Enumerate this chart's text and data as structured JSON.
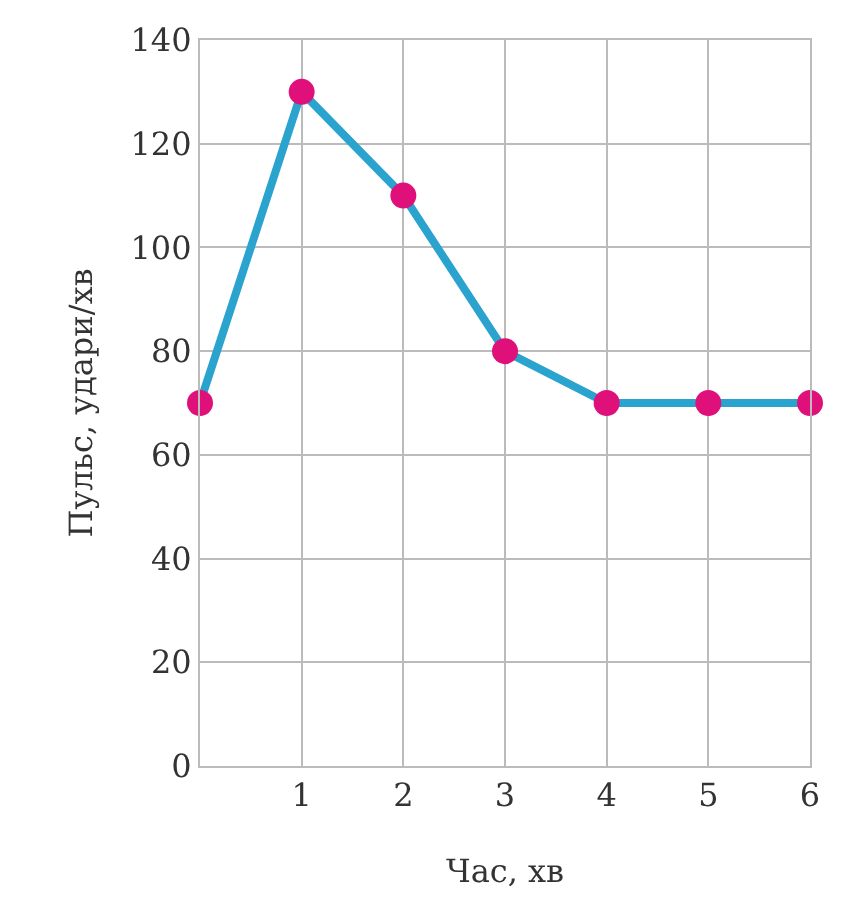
{
  "chart_data": {
    "type": "line",
    "xlabel": "Час, хв",
    "ylabel": "Пульс, удари/хв",
    "x": [
      0,
      1,
      2,
      3,
      4,
      5,
      6
    ],
    "series": [
      {
        "color": "#2aa3cf",
        "colors": [
          "#e0107a",
          "#e0107a",
          "#e0107a",
          "#e0107a",
          "#e0107a",
          "#e0107a",
          "#e0107a"
        ],
        "values": [
          70,
          130,
          110,
          80,
          70,
          70,
          70
        ]
      }
    ],
    "marker": "circle",
    "xlim": [
      0,
      6
    ],
    "xticks": [
      1,
      2,
      3,
      4,
      5,
      6
    ],
    "ylim": [
      0,
      140
    ],
    "yticks": [
      0,
      20,
      40,
      60,
      80,
      100,
      120,
      140
    ],
    "grid": true
  }
}
